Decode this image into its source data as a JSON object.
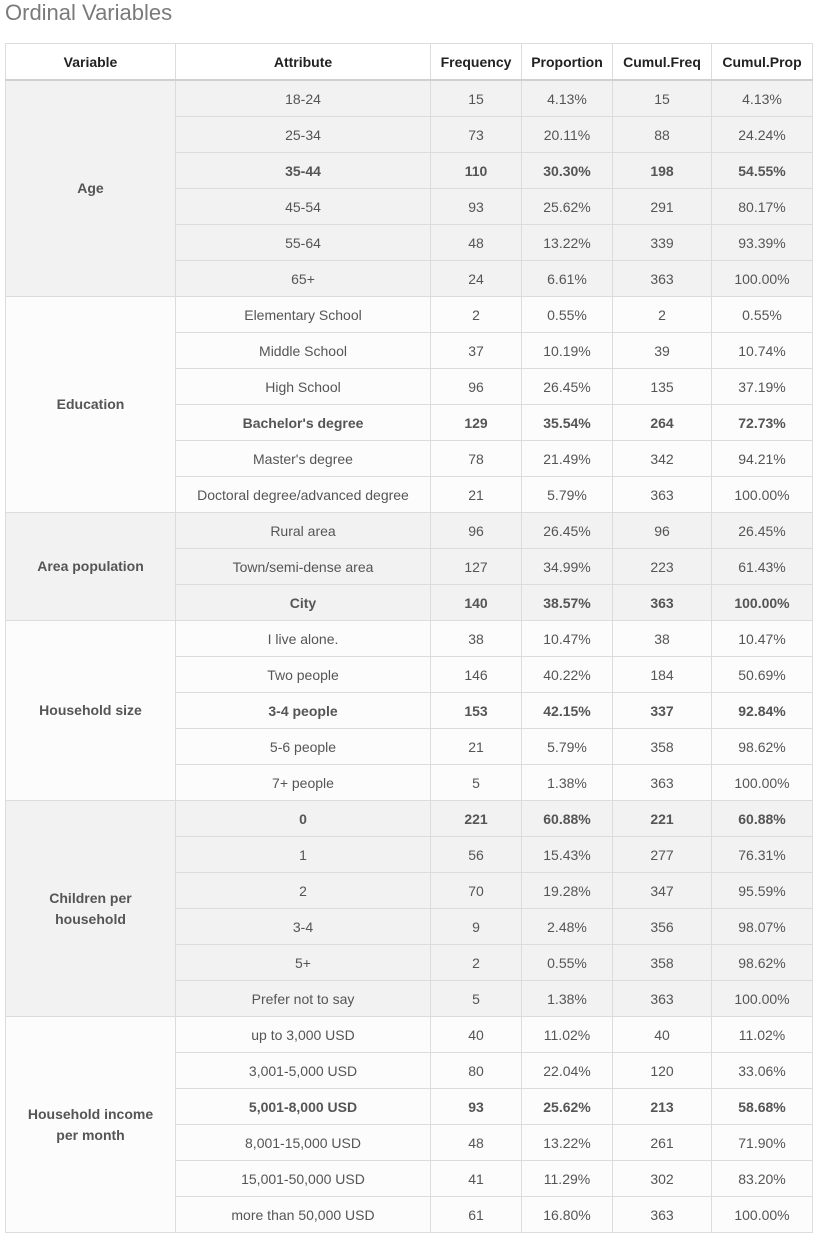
{
  "title": "Ordinal Variables",
  "headers": {
    "variable": "Variable",
    "attribute": "Attribute",
    "frequency": "Frequency",
    "proportion": "Proportion",
    "cumul_freq": "Cumul.Freq",
    "cumul_prop": "Cumul.Prop"
  },
  "groups": [
    {
      "variable": "Age",
      "rows": [
        {
          "attribute": "18-24",
          "frequency": "15",
          "proportion": "4.13%",
          "cumul_freq": "15",
          "cumul_prop": "4.13%"
        },
        {
          "attribute": "25-34",
          "frequency": "73",
          "proportion": "20.11%",
          "cumul_freq": "88",
          "cumul_prop": "24.24%"
        },
        {
          "attribute": "35-44",
          "frequency": "110",
          "proportion": "30.30%",
          "cumul_freq": "198",
          "cumul_prop": "54.55%",
          "bold": true
        },
        {
          "attribute": "45-54",
          "frequency": "93",
          "proportion": "25.62%",
          "cumul_freq": "291",
          "cumul_prop": "80.17%"
        },
        {
          "attribute": "55-64",
          "frequency": "48",
          "proportion": "13.22%",
          "cumul_freq": "339",
          "cumul_prop": "93.39%"
        },
        {
          "attribute": "65+",
          "frequency": "24",
          "proportion": "6.61%",
          "cumul_freq": "363",
          "cumul_prop": "100.00%"
        }
      ]
    },
    {
      "variable": "Education",
      "rows": [
        {
          "attribute": "Elementary School",
          "frequency": "2",
          "proportion": "0.55%",
          "cumul_freq": "2",
          "cumul_prop": "0.55%"
        },
        {
          "attribute": "Middle School",
          "frequency": "37",
          "proportion": "10.19%",
          "cumul_freq": "39",
          "cumul_prop": "10.74%"
        },
        {
          "attribute": "High School",
          "frequency": "96",
          "proportion": "26.45%",
          "cumul_freq": "135",
          "cumul_prop": "37.19%"
        },
        {
          "attribute": "Bachelor's degree",
          "frequency": "129",
          "proportion": "35.54%",
          "cumul_freq": "264",
          "cumul_prop": "72.73%",
          "bold": true
        },
        {
          "attribute": "Master's degree",
          "frequency": "78",
          "proportion": "21.49%",
          "cumul_freq": "342",
          "cumul_prop": "94.21%"
        },
        {
          "attribute": "Doctoral degree/advanced degree",
          "frequency": "21",
          "proportion": "5.79%",
          "cumul_freq": "363",
          "cumul_prop": "100.00%"
        }
      ]
    },
    {
      "variable": "Area population",
      "rows": [
        {
          "attribute": "Rural area",
          "frequency": "96",
          "proportion": "26.45%",
          "cumul_freq": "96",
          "cumul_prop": "26.45%"
        },
        {
          "attribute": "Town/semi-dense area",
          "frequency": "127",
          "proportion": "34.99%",
          "cumul_freq": "223",
          "cumul_prop": "61.43%"
        },
        {
          "attribute": "City",
          "frequency": "140",
          "proportion": "38.57%",
          "cumul_freq": "363",
          "cumul_prop": "100.00%",
          "bold": true
        }
      ]
    },
    {
      "variable": "Household size",
      "rows": [
        {
          "attribute": "I live alone.",
          "frequency": "38",
          "proportion": "10.47%",
          "cumul_freq": "38",
          "cumul_prop": "10.47%"
        },
        {
          "attribute": "Two people",
          "frequency": "146",
          "proportion": "40.22%",
          "cumul_freq": "184",
          "cumul_prop": "50.69%"
        },
        {
          "attribute": "3-4 people",
          "frequency": "153",
          "proportion": "42.15%",
          "cumul_freq": "337",
          "cumul_prop": "92.84%",
          "bold": true
        },
        {
          "attribute": "5-6 people",
          "frequency": "21",
          "proportion": "5.79%",
          "cumul_freq": "358",
          "cumul_prop": "98.62%"
        },
        {
          "attribute": "7+ people",
          "frequency": "5",
          "proportion": "1.38%",
          "cumul_freq": "363",
          "cumul_prop": "100.00%"
        }
      ]
    },
    {
      "variable": "Children per household",
      "rows": [
        {
          "attribute": "0",
          "frequency": "221",
          "proportion": "60.88%",
          "cumul_freq": "221",
          "cumul_prop": "60.88%",
          "bold": true
        },
        {
          "attribute": "1",
          "frequency": "56",
          "proportion": "15.43%",
          "cumul_freq": "277",
          "cumul_prop": "76.31%"
        },
        {
          "attribute": "2",
          "frequency": "70",
          "proportion": "19.28%",
          "cumul_freq": "347",
          "cumul_prop": "95.59%"
        },
        {
          "attribute": "3-4",
          "frequency": "9",
          "proportion": "2.48%",
          "cumul_freq": "356",
          "cumul_prop": "98.07%"
        },
        {
          "attribute": "5+",
          "frequency": "2",
          "proportion": "0.55%",
          "cumul_freq": "358",
          "cumul_prop": "98.62%"
        },
        {
          "attribute": "Prefer not to say",
          "frequency": "5",
          "proportion": "1.38%",
          "cumul_freq": "363",
          "cumul_prop": "100.00%"
        }
      ]
    },
    {
      "variable": "Household income per month",
      "rows": [
        {
          "attribute": "up to 3,000 USD",
          "frequency": "40",
          "proportion": "11.02%",
          "cumul_freq": "40",
          "cumul_prop": "11.02%"
        },
        {
          "attribute": "3,001-5,000 USD",
          "frequency": "80",
          "proportion": "22.04%",
          "cumul_freq": "120",
          "cumul_prop": "33.06%"
        },
        {
          "attribute": "5,001-8,000 USD",
          "frequency": "93",
          "proportion": "25.62%",
          "cumul_freq": "213",
          "cumul_prop": "58.68%",
          "bold": true
        },
        {
          "attribute": "8,001-15,000 USD",
          "frequency": "48",
          "proportion": "13.22%",
          "cumul_freq": "261",
          "cumul_prop": "71.90%"
        },
        {
          "attribute": "15,001-50,000 USD",
          "frequency": "41",
          "proportion": "11.29%",
          "cumul_freq": "302",
          "cumul_prop": "83.20%"
        },
        {
          "attribute": "more than 50,000 USD",
          "frequency": "61",
          "proportion": "16.80%",
          "cumul_freq": "363",
          "cumul_prop": "100.00%"
        }
      ]
    }
  ]
}
